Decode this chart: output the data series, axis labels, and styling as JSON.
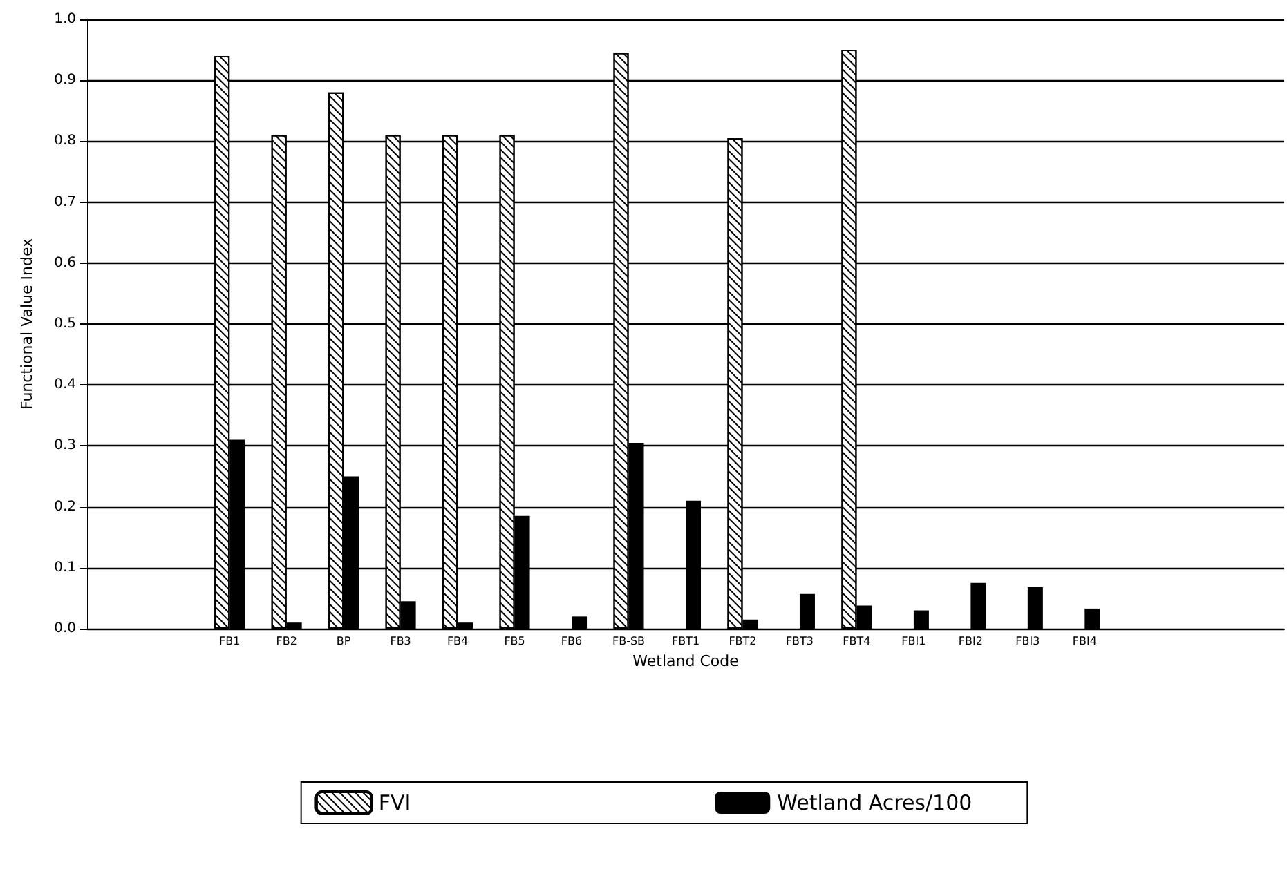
{
  "chart_data": {
    "type": "bar",
    "xlabel": "Wetland Code",
    "ylabel": "Functional Value Index",
    "categories": [
      null,
      null,
      "FB1",
      "FB2",
      "BP",
      "FB3",
      "FB4",
      "FB5",
      "FB6",
      "FB-SB",
      "FBT1",
      "FBT2",
      "FBT3",
      "FBT4",
      "FBI1",
      "FBI2",
      "FBI3",
      "FBI4",
      null,
      null,
      null
    ],
    "series": [
      {
        "name": "FVI",
        "color": "#ffffff",
        "values": [
          null,
          null,
          0.94,
          0.81,
          0.88,
          0.81,
          0.81,
          0.81,
          null,
          0.945,
          null,
          0.805,
          null,
          0.95,
          null,
          null,
          null,
          null,
          null,
          null,
          null
        ]
      },
      {
        "name": "Wetland Acres/100",
        "color": "#000000",
        "values": [
          null,
          null,
          0.31,
          0.01,
          0.25,
          0.045,
          0.01,
          0.185,
          0.02,
          0.305,
          0.21,
          0.015,
          0.057,
          0.038,
          0.03,
          0.075,
          0.068,
          0.033,
          null,
          null,
          null
        ]
      }
    ],
    "ylim": [
      0,
      1
    ],
    "yticks": [
      {
        "value": 0,
        "label": "0.0"
      },
      0.1,
      0.2,
      0.3,
      0.4,
      0.5,
      0.6,
      0.7,
      0.8,
      0.9,
      {
        "value": 1,
        "label": "1.0"
      }
    ],
    "grid": "y",
    "legend": "bottom"
  }
}
